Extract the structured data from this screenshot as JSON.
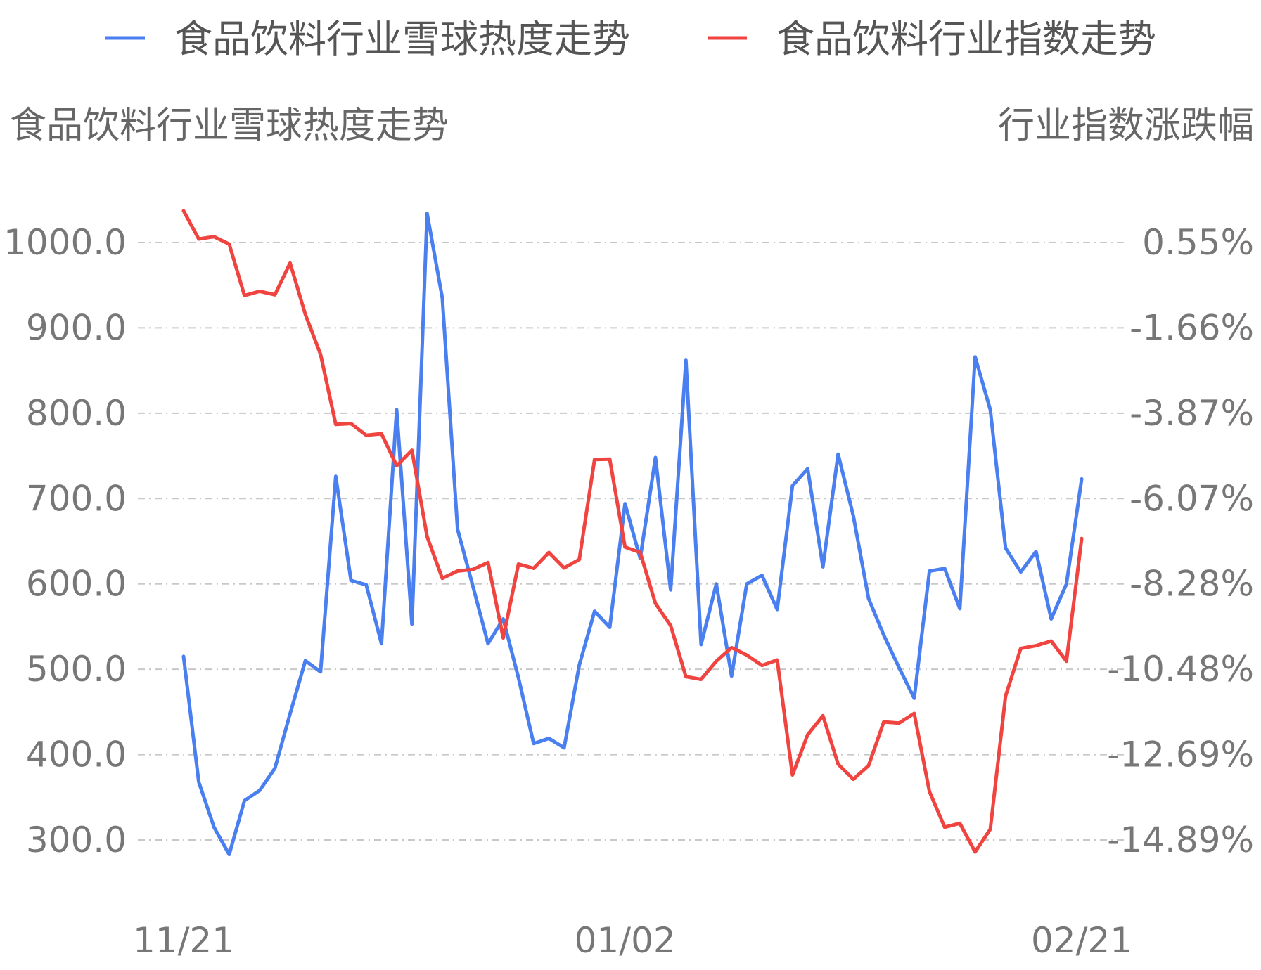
{
  "chart_data": {
    "type": "line",
    "legend": {
      "placement": "top",
      "entries": [
        "食品饮料行业雪球热度走势",
        "食品饮料行业指数走势"
      ]
    },
    "left_axis_title": "食品饮料行业雪球热度走势",
    "right_axis_title": "行业指数涨跌幅",
    "x_tick_labels": [
      "11/21",
      "01/02",
      "02/21"
    ],
    "x_tick_indices": [
      0,
      29,
      59
    ],
    "y_left_ticks": [
      "300.0",
      "400.0",
      "500.0",
      "600.0",
      "700.0",
      "800.0",
      "900.0",
      "1000.0"
    ],
    "y_left_range": [
      300,
      1000
    ],
    "y_right_ticks": [
      "-14.89%",
      "-12.69%",
      "-10.48%",
      "-8.28%",
      "-6.07%",
      "-3.87%",
      "-1.66%",
      "0.55%"
    ],
    "y_right_range": [
      -14.89,
      0.55
    ],
    "grid": true,
    "series": [
      {
        "name": "食品饮料行业雪球热度走势",
        "axis": "left",
        "color": "#4a7ff0",
        "values": [
          515,
          368,
          315,
          283,
          346,
          358,
          384,
          448,
          510,
          497,
          726,
          604,
          599,
          530,
          804,
          553,
          1034,
          935,
          664,
          598,
          530,
          559,
          490,
          413,
          419,
          408,
          505,
          568,
          549,
          694,
          630,
          748,
          593,
          862,
          529,
          600,
          492,
          600,
          610,
          570,
          715,
          735,
          620,
          752,
          680,
          583,
          540,
          502,
          466,
          615,
          618,
          571,
          866,
          804,
          642,
          614,
          638,
          559,
          600,
          723
        ]
      },
      {
        "name": "食品饮料行业指数走势",
        "axis": "right",
        "color": "#f04440",
        "values": [
          1.37,
          0.64,
          0.7,
          0.51,
          -0.82,
          -0.71,
          -0.8,
          0.02,
          -1.31,
          -2.34,
          -4.15,
          -4.13,
          -4.43,
          -4.39,
          -5.22,
          -4.82,
          -7.05,
          -8.13,
          -7.94,
          -7.9,
          -7.72,
          -9.67,
          -7.76,
          -7.87,
          -7.46,
          -7.86,
          -7.64,
          -5.06,
          -5.05,
          -7.32,
          -7.46,
          -8.78,
          -9.35,
          -10.67,
          -10.74,
          -10.27,
          -9.92,
          -10.11,
          -10.38,
          -10.24,
          -13.21,
          -12.17,
          -11.68,
          -12.93,
          -13.32,
          -12.97,
          -11.84,
          -11.87,
          -11.62,
          -13.64,
          -14.56,
          -14.46,
          -15.2,
          -14.61,
          -11.17,
          -9.94,
          -9.87,
          -9.75,
          -10.27,
          -7.1
        ]
      }
    ]
  }
}
